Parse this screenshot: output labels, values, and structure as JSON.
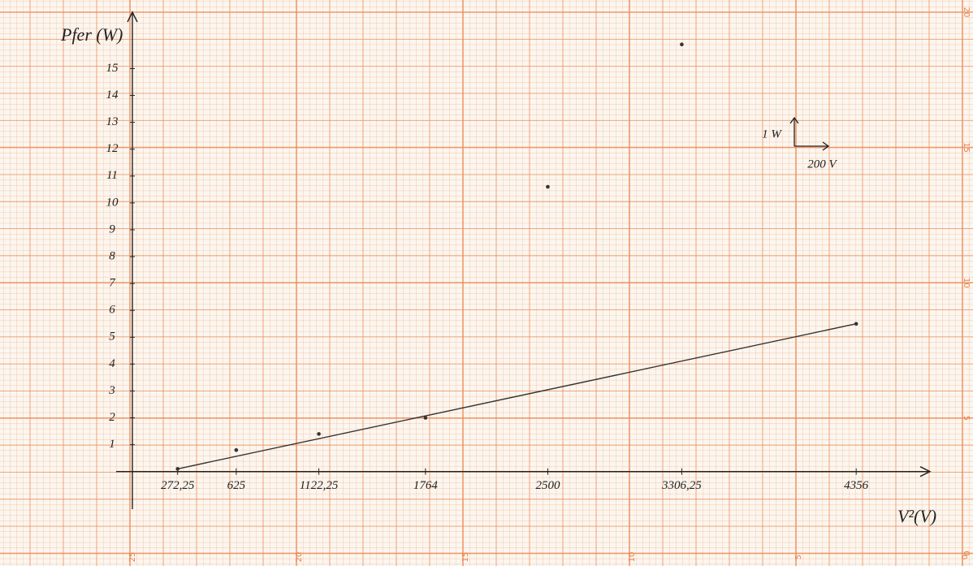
{
  "chart_data": {
    "type": "scatter",
    "y_label": "Pfer (W)",
    "x_label": "V²(V)",
    "xlim": [
      0,
      4800
    ],
    "ylim": [
      -1.4,
      17.1
    ],
    "xticks": [
      {
        "value": 272.25,
        "label": "272,25"
      },
      {
        "value": 625,
        "label": "625"
      },
      {
        "value": 1122.25,
        "label": "1122,25"
      },
      {
        "value": 1764,
        "label": "1764"
      },
      {
        "value": 2500,
        "label": "2500"
      },
      {
        "value": 3306.25,
        "label": "3306,25"
      },
      {
        "value": 4356,
        "label": "4356"
      }
    ],
    "yticks": [
      1,
      2,
      3,
      4,
      5,
      6,
      7,
      8,
      9,
      10,
      11,
      12,
      13,
      14,
      15
    ],
    "series": [
      {
        "type": "scatter",
        "color": "#333333",
        "x": [
          272.25,
          625,
          1122.25,
          1764,
          2500,
          3306.25,
          4356
        ],
        "values": [
          0.1,
          0.8,
          1.4,
          2,
          10.6,
          15.9,
          5.5
        ]
      },
      {
        "type": "line",
        "color": "#333333",
        "x": [
          272.25,
          4356
        ],
        "values": [
          0.1,
          5.5
        ]
      }
    ],
    "scale_note": {
      "y_unit": "1 W",
      "x_unit": "200 V"
    },
    "paper_labels": {
      "bottom": [
        "25",
        "20",
        "15",
        "10",
        "5",
        "0"
      ],
      "right": [
        "20",
        "15",
        "10",
        "5",
        "0"
      ]
    }
  }
}
